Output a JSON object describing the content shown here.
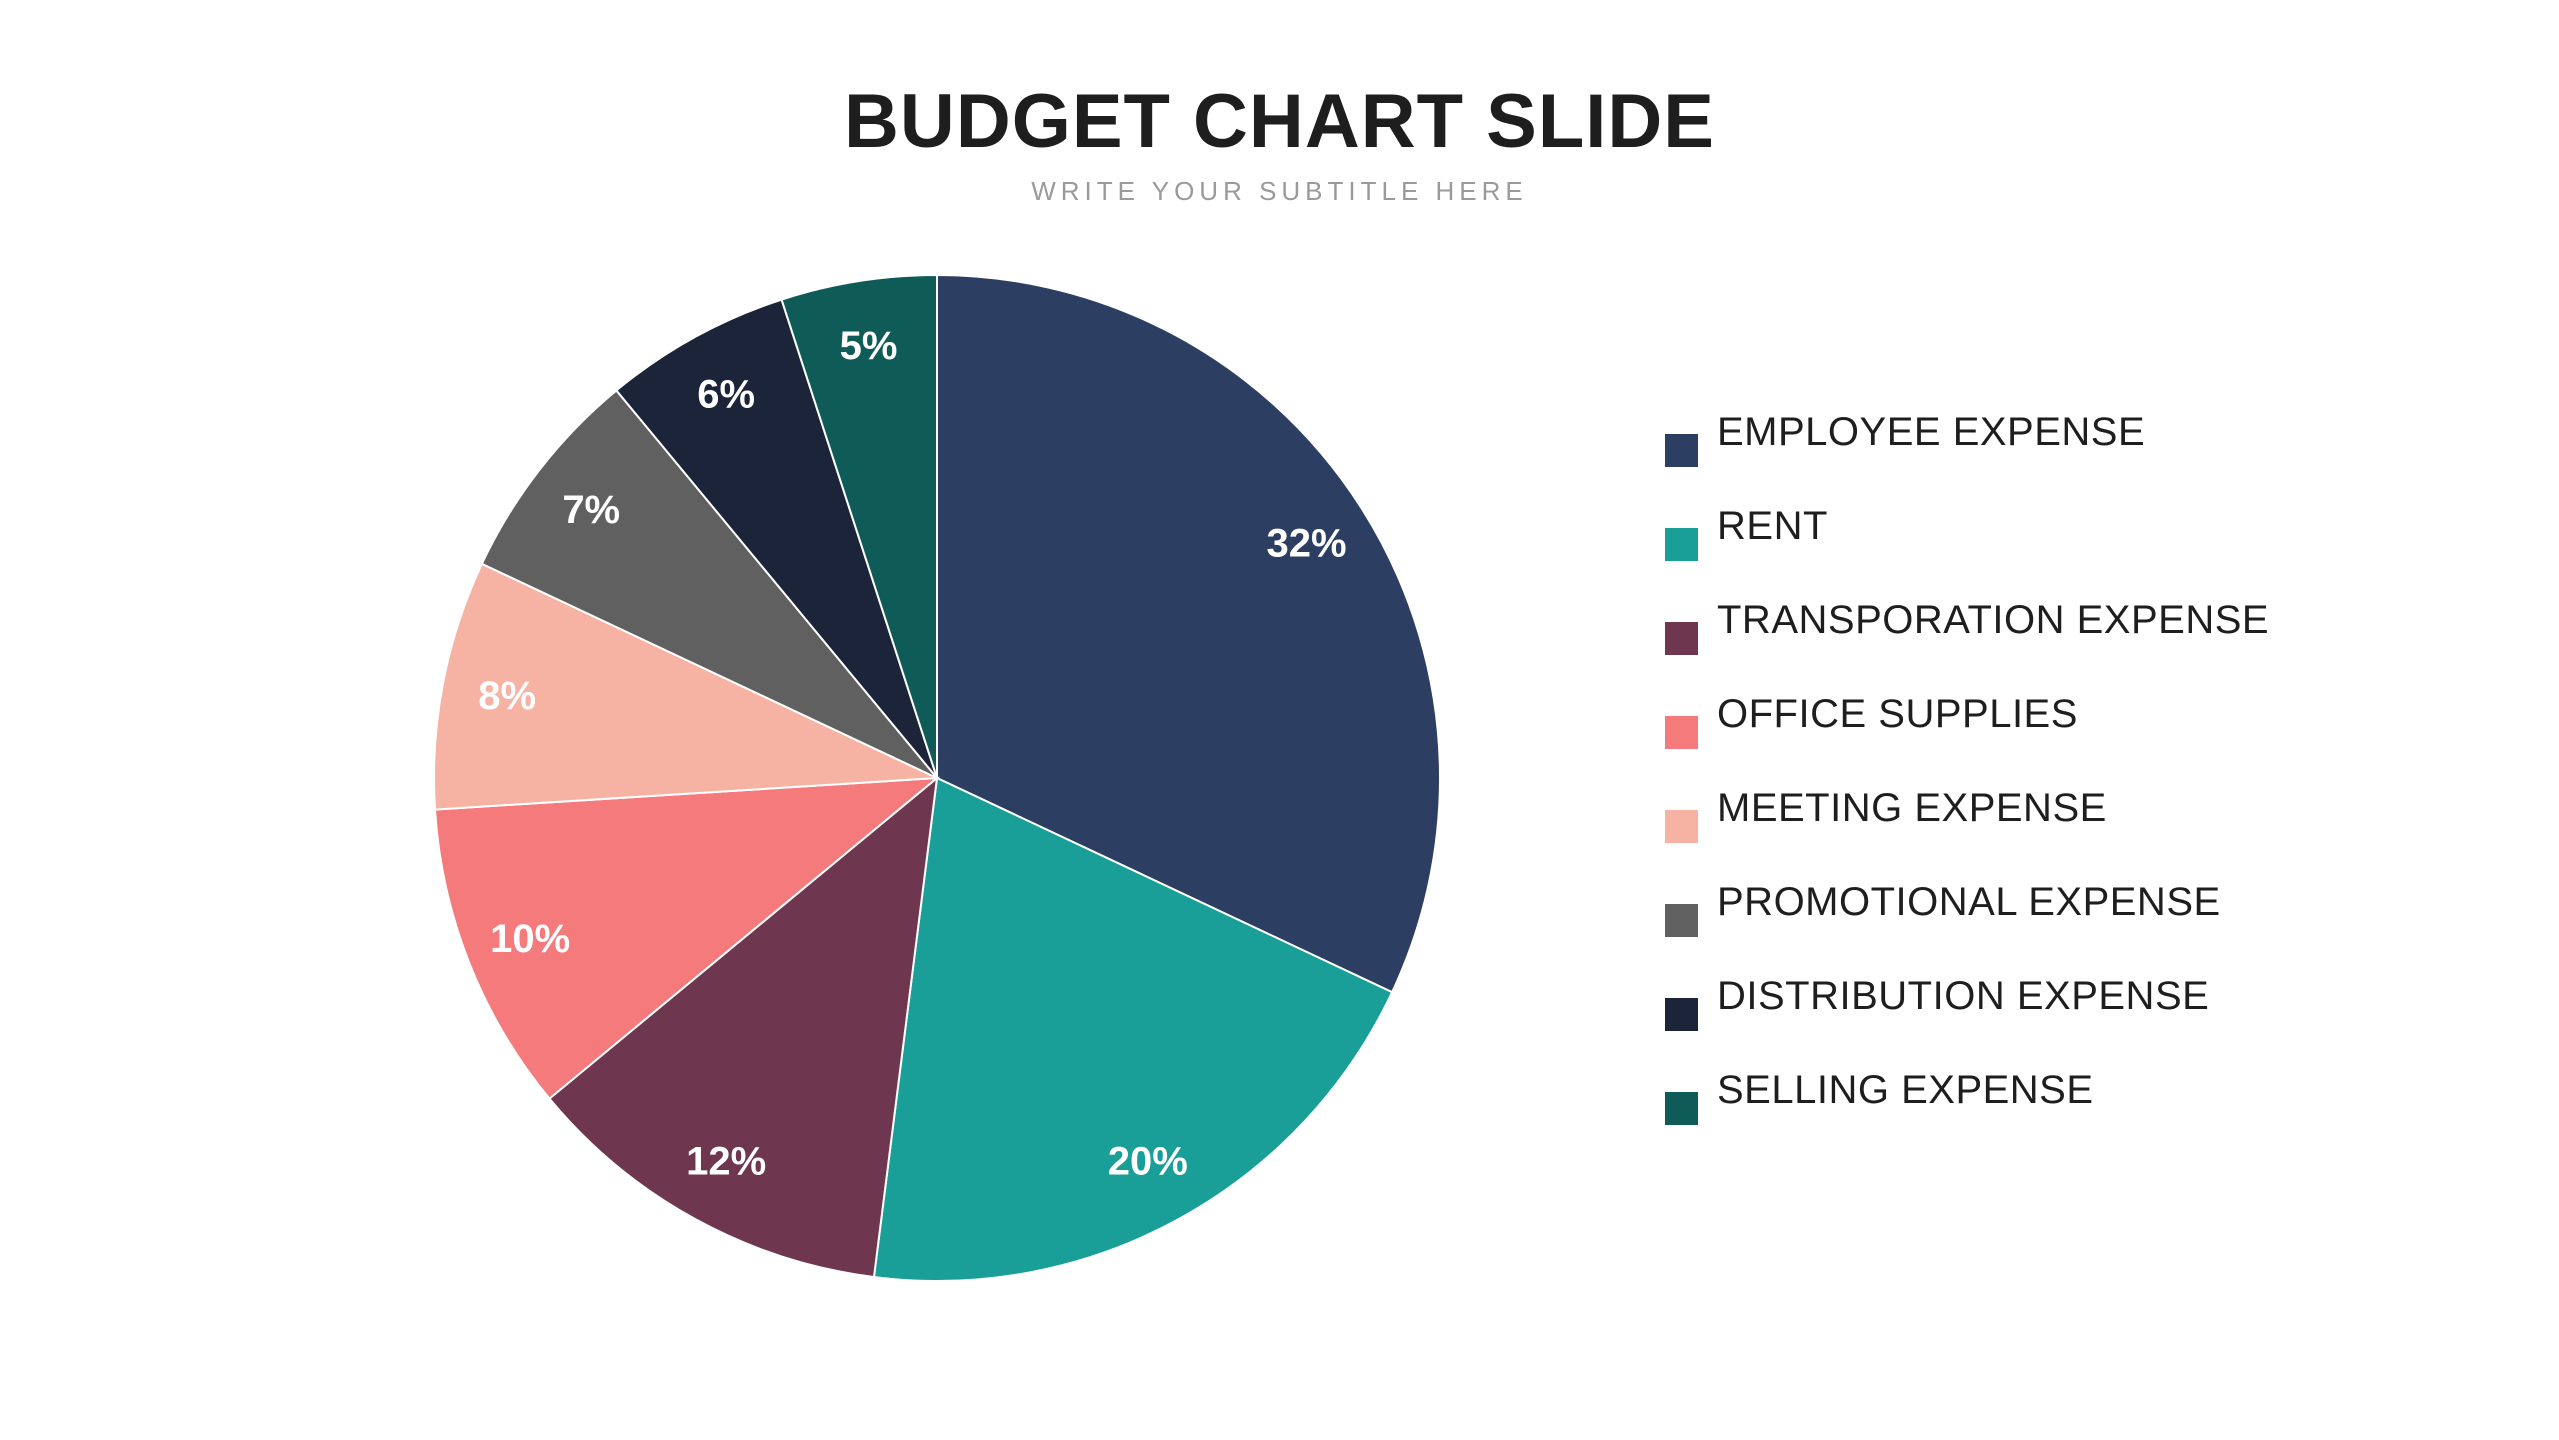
{
  "title": "BUDGET CHART SLIDE",
  "subtitle": "WRITE YOUR SUBTITLE HERE",
  "chart_data": {
    "type": "pie",
    "title": "BUDGET CHART SLIDE",
    "subtitle": "WRITE YOUR SUBTITLE HERE",
    "start_angle": "12 o'clock, clockwise",
    "legend_position": "right",
    "categories": [
      "EMPLOYEE EXPENSE",
      "RENT",
      "TRANSPORATION EXPENSE",
      "OFFICE SUPPLIES",
      "MEETING EXPENSE",
      "PROMOTIONAL EXPENSE",
      "DISTRIBUTION EXPENSE",
      "SELLING EXPENSE"
    ],
    "values": [
      32,
      20,
      12,
      10,
      8,
      7,
      6,
      5
    ],
    "data_labels": [
      "32%",
      "20%",
      "12%",
      "10%",
      "8%",
      "7%",
      "6%",
      "5%"
    ],
    "colors": [
      "#2d3e63",
      "#199e98",
      "#6e374f",
      "#f47a7c",
      "#f6b3a3",
      "#606060",
      "#1c2439",
      "#0f5b57"
    ]
  }
}
